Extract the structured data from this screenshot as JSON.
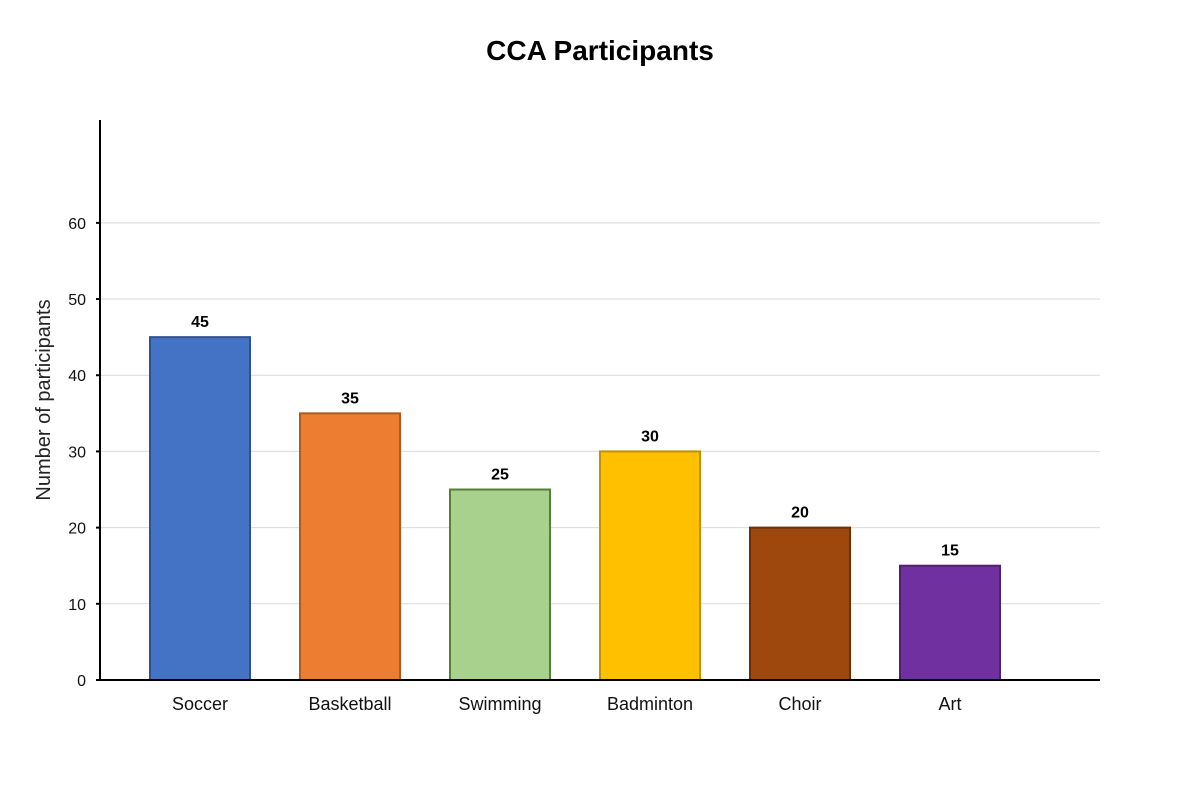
{
  "chart_data": {
    "type": "bar",
    "title": "CCA Participants",
    "xlabel": "",
    "ylabel": "Number of participants",
    "categories": [
      "Soccer",
      "Basketball",
      "Swimming",
      "Badminton",
      "Choir",
      "Art"
    ],
    "values": [
      45,
      35,
      25,
      30,
      20,
      15
    ],
    "value_labels": [
      "45",
      "35",
      "25",
      "30",
      "20",
      "15"
    ],
    "colors": [
      "#4472C4",
      "#ED7D31",
      "#A9D18E",
      "#FFC000",
      "#9E480E",
      "#7030A0"
    ],
    "edge_colors": [
      "#2F528F",
      "#AE5A21",
      "#538135",
      "#BF9000",
      "#6B300A",
      "#4E2270"
    ],
    "ylim": [
      0,
      73.5
    ],
    "yticks": [
      0,
      10,
      20,
      30,
      40,
      50,
      60
    ],
    "ytick_labels": [
      "0",
      "10",
      "20",
      "30",
      "40",
      "50",
      "60"
    ],
    "grid": true
  }
}
